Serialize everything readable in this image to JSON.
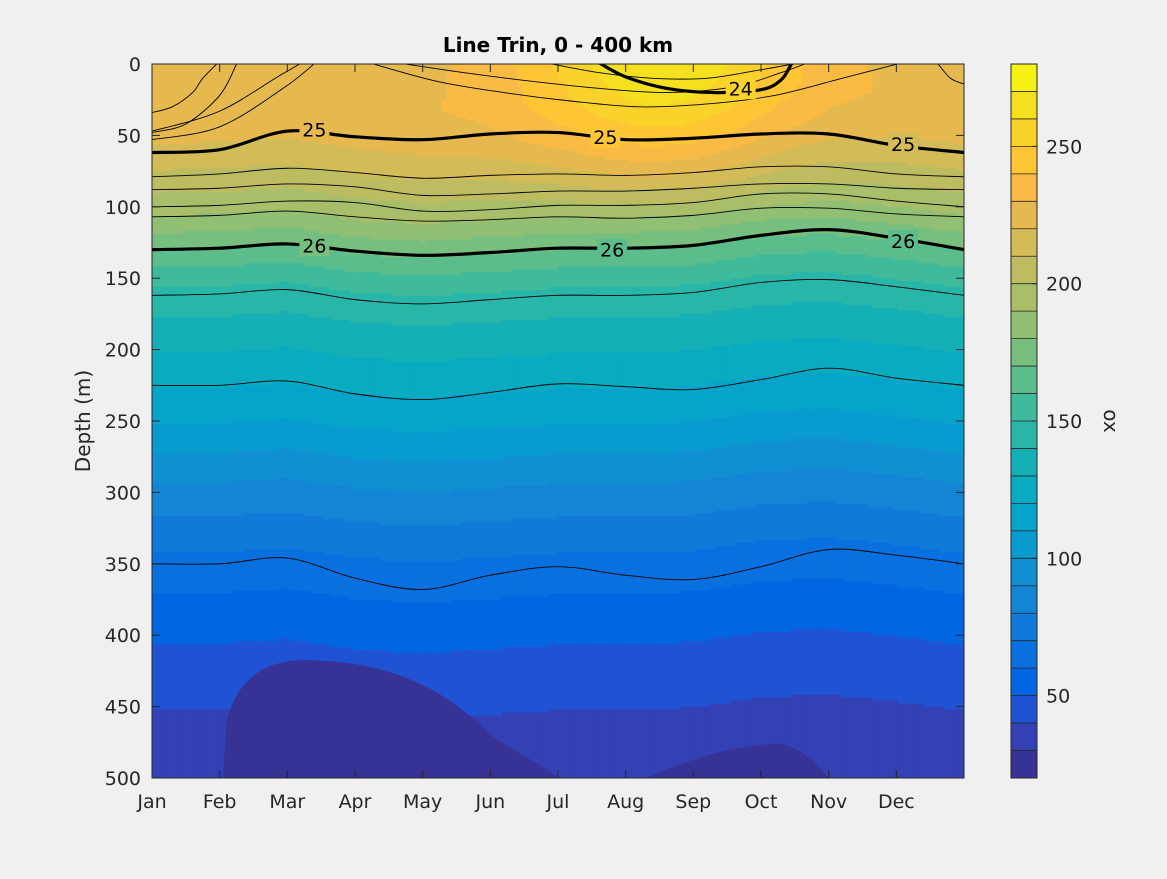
{
  "chart_data": {
    "type": "contour",
    "title": "Line Trin, 0 - 400 km",
    "xlabel": "",
    "ylabel": "Depth (m)",
    "colorbar_label": "ox",
    "x_categories": [
      "Jan",
      "Feb",
      "Mar",
      "Apr",
      "May",
      "Jun",
      "Jul",
      "Aug",
      "Sep",
      "Oct",
      "Nov",
      "Dec"
    ],
    "xlim_months": [
      1,
      13
    ],
    "ylim": [
      0,
      500
    ],
    "y_reversed": true,
    "y_ticks": [
      0,
      50,
      100,
      150,
      200,
      250,
      300,
      350,
      400,
      450,
      500
    ],
    "colorbar": {
      "clim": [
        20,
        280
      ],
      "ticks": [
        50,
        100,
        150,
        200,
        250
      ],
      "levels": [
        20,
        30,
        40,
        50,
        60,
        70,
        80,
        90,
        100,
        110,
        120,
        130,
        140,
        150,
        160,
        170,
        180,
        190,
        200,
        210,
        220,
        230,
        240,
        250,
        260,
        270,
        280
      ],
      "colormap": "parula"
    },
    "oxygen_profile": {
      "depth": [
        0,
        25,
        50,
        75,
        100,
        125,
        150,
        175,
        200,
        225,
        250,
        275,
        300,
        325,
        350,
        375,
        400,
        425,
        450,
        475,
        500
      ],
      "value": [
        232,
        232,
        225,
        210,
        193,
        172,
        152,
        140,
        130,
        120,
        110,
        98,
        86,
        76,
        66,
        58,
        51,
        45,
        40,
        36,
        33
      ]
    },
    "density_contours": {
      "months": [
        1,
        2,
        3,
        4,
        5,
        6,
        7,
        8,
        9,
        10,
        11,
        12,
        13
      ],
      "lines": [
        {
          "level": 24.2,
          "bold": false,
          "depths": [
            47,
            33,
            5,
            -20,
            -20,
            -20,
            -20,
            -20,
            -20,
            -20,
            -20,
            -20,
            -20
          ]
        },
        {
          "level": 24.4,
          "bold": false,
          "depths": [
            53,
            44,
            15,
            -20,
            -20,
            -20,
            -20,
            -20,
            -20,
            -20,
            -20,
            -20,
            -20
          ]
        },
        {
          "level": 24.6,
          "bold": false,
          "depths": [
            -20,
            -20,
            -20,
            -20,
            -20,
            -20,
            -20,
            -20,
            -20,
            -20,
            -20,
            -20,
            -20
          ]
        },
        {
          "level": 24.0,
          "bold": true,
          "label": "24",
          "depths": [
            -20,
            -20,
            -20,
            -20,
            -20,
            -20,
            -20,
            -20,
            -20,
            -20,
            -20,
            -20,
            -20
          ]
        },
        {
          "level": 25.0,
          "bold": true,
          "label": "25",
          "depths": [
            62,
            60,
            47,
            51,
            53,
            49,
            48,
            53,
            52,
            49,
            49,
            57,
            62
          ]
        },
        {
          "level": 25.2,
          "bold": false,
          "depths": [
            79,
            77,
            73,
            76,
            80,
            78,
            77,
            78,
            76,
            72,
            72,
            77,
            79
          ]
        },
        {
          "level": 25.4,
          "bold": false,
          "depths": [
            88,
            87,
            84,
            86,
            92,
            91,
            89,
            89,
            87,
            84,
            84,
            87,
            88
          ]
        },
        {
          "level": 25.6,
          "bold": false,
          "depths": [
            100,
            99,
            96,
            97,
            103,
            102,
            99,
            99,
            97,
            91,
            91,
            96,
            100
          ]
        },
        {
          "level": 25.8,
          "bold": false,
          "depths": [
            107,
            106,
            103,
            107,
            110,
            109,
            107,
            108,
            106,
            101,
            101,
            105,
            107
          ]
        },
        {
          "level": 26.0,
          "bold": true,
          "label": "26",
          "depths": [
            130,
            129,
            126,
            131,
            134,
            132,
            129,
            129,
            127,
            120,
            116,
            122,
            130
          ]
        },
        {
          "level": 26.3,
          "bold": false,
          "depths": [
            162,
            161,
            158,
            165,
            168,
            165,
            162,
            162,
            160,
            153,
            151,
            156,
            162
          ]
        },
        {
          "level": 26.6,
          "bold": false,
          "depths": [
            225,
            225,
            222,
            231,
            235,
            230,
            224,
            226,
            228,
            221,
            213,
            220,
            225
          ]
        },
        {
          "level": 26.9,
          "bold": false,
          "depths": [
            350,
            350,
            346,
            360,
            368,
            358,
            352,
            358,
            361,
            352,
            340,
            344,
            350
          ]
        }
      ]
    },
    "contour_labels": [
      {
        "text": "25",
        "month": 3.4,
        "depth": 46
      },
      {
        "text": "25",
        "month": 7.7,
        "depth": 51
      },
      {
        "text": "25",
        "month": 12.1,
        "depth": 56
      },
      {
        "text": "26",
        "month": 3.4,
        "depth": 127
      },
      {
        "text": "26",
        "month": 7.8,
        "depth": 130
      },
      {
        "text": "26",
        "month": 12.1,
        "depth": 124
      },
      {
        "text": "24",
        "month": 9.7,
        "depth": 17
      }
    ]
  }
}
